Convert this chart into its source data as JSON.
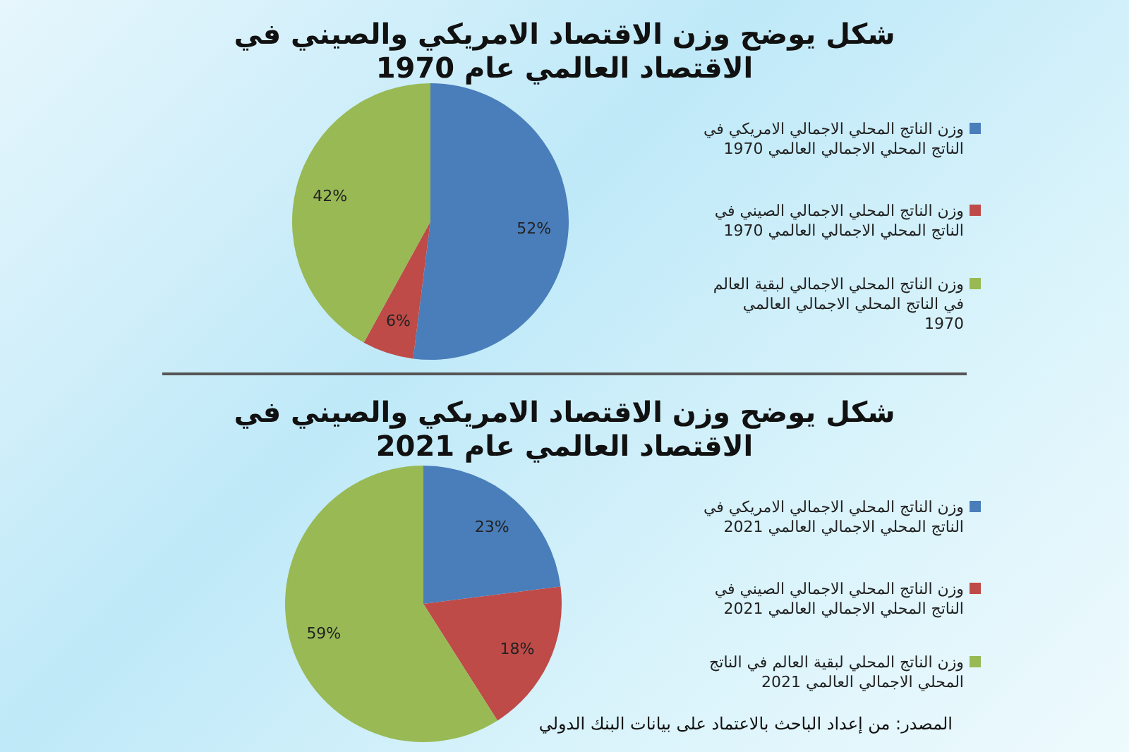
{
  "chart_data": [
    {
      "type": "pie",
      "title": "شكل يوضح وزن الاقتصاد الامريكي والصيني في الاقتصاد العالمي عام 1970",
      "categories": [
        "وزن الناتج المحلي الاجمالي الامريكي في الناتج المحلي الاجمالي العالمي 1970",
        "وزن الناتج المحلي الاجمالي الصيني في الناتج المحلي الاجمالي العالمي 1970",
        "وزن الناتج المحلي الاجمالي لبقية العالم في الناتج المحلي الاجمالي العالمي 1970"
      ],
      "values": [
        52,
        6,
        42
      ],
      "value_labels": [
        "52%",
        "6%",
        "42%"
      ],
      "colors": [
        "#4a7ebb",
        "#be4b48",
        "#98b954"
      ],
      "legend": "right"
    },
    {
      "type": "pie",
      "title": "شكل يوضح وزن الاقتصاد الامريكي والصيني في الاقتصاد العالمي عام 2021",
      "categories": [
        "وزن الناتج المحلي الاجمالي الامريكي في الناتج المحلي الاجمالي العالمي 2021",
        "وزن الناتج المحلي الاجمالي الصيني في الناتج المحلي الاجمالي العالمي 2021",
        "وزن الناتج المحلي لبقية العالم في الناتج المحلي الاجمالي العالمي 2021"
      ],
      "values": [
        23,
        18,
        59
      ],
      "value_labels": [
        "23%",
        "18%",
        "59%"
      ],
      "colors": [
        "#4a7ebb",
        "#be4b48",
        "#98b954"
      ],
      "legend": "right",
      "annotations": [
        "المصدر: من إعداد الباحث بالاعتماد على بيانات البنك الدولي"
      ]
    }
  ]
}
